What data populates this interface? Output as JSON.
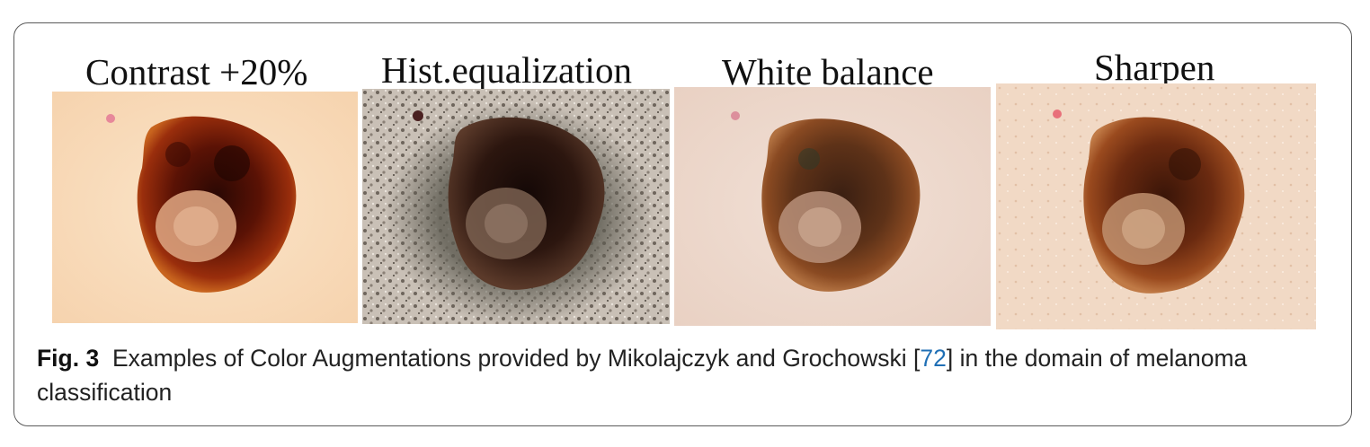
{
  "figure": {
    "panels": [
      {
        "title": "Contrast +20%"
      },
      {
        "title": "Hist.equalization"
      },
      {
        "title": "White balance"
      },
      {
        "title": "Sharpen"
      }
    ],
    "caption": {
      "label": "Fig. 3",
      "text_before": "Examples of Color Augmentations provided by Mikolajczyk and Grochowski [",
      "ref": "72",
      "text_after": "] in the domain of melanoma classification"
    },
    "colors": {
      "reference_link": "#1f6fb5",
      "frame_border": "#5a5a5a"
    }
  }
}
